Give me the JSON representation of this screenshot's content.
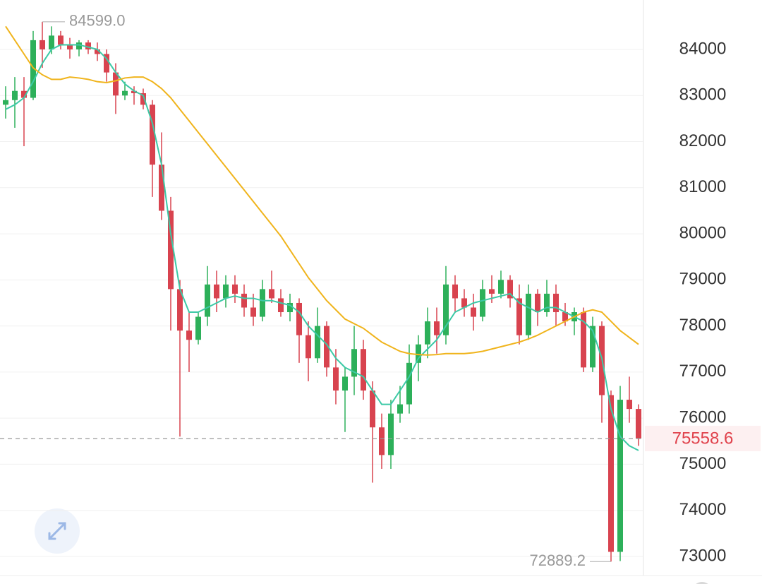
{
  "chart_data": {
    "type": "candlestick",
    "open": [
      82800,
      82900,
      83100,
      82950,
      84200,
      84000,
      84300,
      84100,
      84000,
      84150,
      84000,
      83900,
      83500,
      83000,
      83100,
      83050,
      82800,
      81500,
      80500,
      78800,
      77900,
      77700,
      78200,
      78900,
      78600,
      78900,
      78700,
      78400,
      78200,
      78800,
      78600,
      78300,
      78500,
      77800,
      77300,
      78000,
      77100,
      76600,
      76900,
      77500,
      76600,
      75800,
      75200,
      76100,
      76300,
      77200,
      77600,
      78100,
      77800,
      78900,
      78600,
      78400,
      78200,
      78800,
      78700,
      79000,
      78600,
      77800,
      78700,
      78300,
      78700,
      78300,
      78100,
      78300,
      77100,
      78000,
      76500,
      73100,
      76400,
      76200
    ],
    "high": [
      83200,
      83400,
      83400,
      84400,
      84599,
      84500,
      84400,
      84250,
      84200,
      84200,
      84150,
      84000,
      83700,
      83300,
      83200,
      83150,
      82900,
      82200,
      80800,
      79000,
      78300,
      78300,
      79300,
      79200,
      79100,
      79100,
      78900,
      78700,
      79000,
      79200,
      78800,
      78700,
      78600,
      78100,
      78400,
      78100,
      77500,
      77100,
      78000,
      77700,
      76800,
      76100,
      76400,
      76700,
      77600,
      77800,
      78400,
      78400,
      79300,
      79100,
      78800,
      78700,
      79000,
      79100,
      79200,
      79100,
      78900,
      78900,
      78800,
      79000,
      78900,
      78500,
      78400,
      78400,
      78200,
      78100,
      76600,
      76700,
      76900,
      76300
    ],
    "low": [
      82500,
      82300,
      81900,
      82900,
      83600,
      83900,
      84000,
      83800,
      83850,
      83900,
      83750,
      83300,
      82600,
      82900,
      82800,
      82700,
      80800,
      80300,
      77900,
      75600,
      77000,
      77600,
      78000,
      78300,
      78400,
      78500,
      78200,
      78000,
      78100,
      78500,
      78200,
      78100,
      77200,
      76800,
      77200,
      76900,
      76300,
      75700,
      76500,
      76400,
      74600,
      74900,
      74900,
      75900,
      76100,
      76800,
      77300,
      77400,
      77600,
      78300,
      78200,
      77900,
      78100,
      78500,
      78600,
      78400,
      77600,
      77700,
      78000,
      78200,
      78000,
      78000,
      77800,
      77000,
      77000,
      75900,
      72889.2,
      72900,
      75900,
      75400
    ],
    "close": [
      82900,
      83100,
      82950,
      84200,
      84000,
      84300,
      84100,
      84000,
      84150,
      84000,
      83900,
      83500,
      83000,
      83100,
      83050,
      82800,
      81500,
      80500,
      78800,
      77900,
      77700,
      78200,
      78900,
      78600,
      78900,
      78700,
      78400,
      78200,
      78800,
      78600,
      78300,
      78500,
      77800,
      77300,
      78000,
      77100,
      76600,
      76900,
      77500,
      76600,
      75800,
      75200,
      76100,
      76300,
      77200,
      77600,
      78100,
      77800,
      78900,
      78600,
      78400,
      78200,
      78800,
      78700,
      79000,
      78600,
      77800,
      78700,
      78300,
      78700,
      78300,
      78100,
      78300,
      77100,
      78000,
      76500,
      73100,
      76400,
      76200,
      75558.6
    ],
    "up_color": "#2db05a",
    "down_color": "#d8434f",
    "lines": [
      {
        "color": "#3cc9a6",
        "values": [
          82700,
          82800,
          82950,
          83300,
          83700,
          84000,
          84100,
          84100,
          84100,
          84050,
          84000,
          83800,
          83500,
          83250,
          83100,
          83000,
          82400,
          81500,
          80000,
          78800,
          78300,
          78300,
          78400,
          78500,
          78600,
          78650,
          78600,
          78600,
          78550,
          78550,
          78500,
          78450,
          78300,
          78000,
          77800,
          77600,
          77300,
          77100,
          77000,
          76900,
          76600,
          76300,
          76300,
          76600,
          76900,
          77300,
          77500,
          77700,
          78000,
          78300,
          78400,
          78500,
          78550,
          78600,
          78650,
          78700,
          78500,
          78400,
          78300,
          78400,
          78400,
          78300,
          78200,
          78100,
          77900,
          77300,
          76200,
          75600,
          75400,
          75300
        ]
      },
      {
        "color": "#f0b41c",
        "values": [
          84500,
          84200,
          83900,
          83600,
          83450,
          83350,
          83350,
          83400,
          83380,
          83350,
          83300,
          83280,
          83320,
          83380,
          83400,
          83400,
          83300,
          83150,
          82950,
          82700,
          82450,
          82200,
          81950,
          81700,
          81450,
          81200,
          80950,
          80700,
          80450,
          80200,
          79950,
          79650,
          79350,
          79050,
          78800,
          78550,
          78350,
          78150,
          78050,
          77950,
          77800,
          77650,
          77550,
          77450,
          77400,
          77380,
          77370,
          77380,
          77400,
          77400,
          77400,
          77420,
          77450,
          77500,
          77550,
          77600,
          77650,
          77720,
          77800,
          77900,
          78000,
          78100,
          78200,
          78300,
          78350,
          78300,
          78100,
          77900,
          77750,
          77600
        ]
      }
    ],
    "ylim": [
      72586,
      85072
    ],
    "yticks": [
      73000,
      74000,
      75000,
      76000,
      77000,
      78000,
      79000,
      80000,
      81000,
      82000,
      83000,
      84000
    ],
    "grid": true,
    "max_marker": {
      "value": 84599,
      "label": "84599.0"
    },
    "min_marker": {
      "value": 72889.2,
      "label": "72889.2"
    },
    "last_price": {
      "value": 75558.6,
      "label": "75558.6"
    }
  }
}
